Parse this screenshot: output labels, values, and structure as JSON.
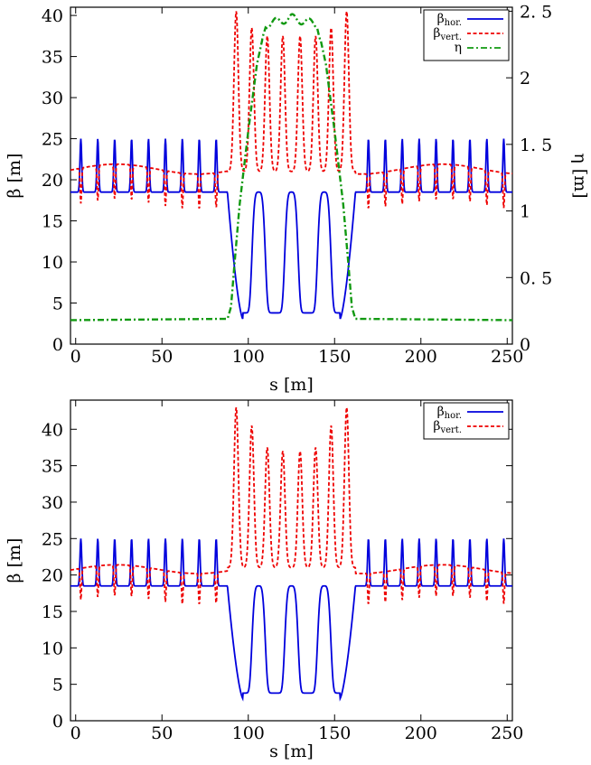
{
  "chart_data": [
    {
      "type": "line",
      "xlabel": "s [m]",
      "ylabel": "β [m]",
      "y2label": "η [m]",
      "xlim": [
        -3,
        253
      ],
      "ylim": [
        0,
        41
      ],
      "y2lim": [
        0,
        2.53
      ],
      "xticks": [
        "0",
        "50",
        "100",
        "150",
        "200",
        "250"
      ],
      "yticks": [
        "0",
        "5",
        "10",
        "15",
        "20",
        "25",
        "30",
        "35",
        "40"
      ],
      "y2ticks": [
        "0",
        "0. 5",
        "1",
        "1. 5",
        "2",
        "2. 5"
      ],
      "grid": false,
      "legend_position": "top-right",
      "series": [
        {
          "name": "β",
          "name_sub": "hor.",
          "color": "#0000dd",
          "dash": "solid",
          "axis": "left",
          "kind": "beta_h"
        },
        {
          "name": "β",
          "name_sub": "vert.",
          "color": "#ee0000",
          "dash": "dashed",
          "axis": "left",
          "kind": "beta_v"
        },
        {
          "name": "η",
          "name_sub": "",
          "color": "#119911",
          "dash": "dashdot",
          "axis": "right",
          "kind": "eta",
          "x": [
            -3,
            88,
            90,
            92,
            95,
            100,
            105,
            110,
            125,
            140,
            145,
            150,
            155,
            158,
            160,
            162,
            253
          ],
          "values": [
            0.18,
            0.19,
            0.28,
            0.6,
            1.05,
            1.6,
            2.1,
            2.4,
            2.45,
            2.4,
            2.1,
            1.6,
            1.05,
            0.6,
            0.28,
            0.19,
            0.18
          ]
        }
      ]
    },
    {
      "type": "line",
      "xlabel": "s [m]",
      "ylabel": "β [m]",
      "xlim": [
        -3,
        253
      ],
      "ylim": [
        0,
        44
      ],
      "xticks": [
        "0",
        "50",
        "100",
        "150",
        "200",
        "250"
      ],
      "yticks": [
        "0",
        "5",
        "10",
        "15",
        "20",
        "25",
        "30",
        "35",
        "40"
      ],
      "grid": false,
      "legend_position": "top-right",
      "series": [
        {
          "name": "β",
          "name_sub": "hor.",
          "color": "#0000dd",
          "dash": "solid",
          "axis": "left",
          "kind": "beta_h"
        },
        {
          "name": "β",
          "name_sub": "vert.",
          "color": "#ee0000",
          "dash": "dashed",
          "axis": "left",
          "kind": "beta_v"
        }
      ]
    }
  ],
  "arc_cell": {
    "period_m": 9.8,
    "top": {
      "beta_h_base": 18.5,
      "beta_h_peak": 25.0,
      "beta_v_base": 21.3,
      "beta_v_dip": 17.0
    },
    "bottom": {
      "beta_h_base": 18.5,
      "beta_h_peak": 25.0,
      "beta_v_base": 20.8,
      "beta_v_dip": 16.5
    }
  },
  "straight_section": {
    "start_m": 88,
    "end_m": 162,
    "beta_h_peaks": [
      {
        "s": 106,
        "beta": 18.5
      },
      {
        "s": 125,
        "beta": 18.5
      },
      {
        "s": 144,
        "beta": 18.5
      }
    ],
    "beta_h_minima": [
      {
        "s": 97,
        "beta": 2.9
      },
      {
        "s": 153,
        "beta": 2.9
      }
    ],
    "top_beta_v_peaks": [
      {
        "s": 93,
        "beta": 40.5
      },
      {
        "s": 102,
        "beta": 38.5
      },
      {
        "s": 111,
        "beta": 37.5
      },
      {
        "s": 120,
        "beta": 37.5
      },
      {
        "s": 130,
        "beta": 37.5
      },
      {
        "s": 139,
        "beta": 37.5
      },
      {
        "s": 148,
        "beta": 38.5
      },
      {
        "s": 157,
        "beta": 40.5
      }
    ],
    "bottom_beta_v_peaks": [
      {
        "s": 93,
        "beta": 43.0
      },
      {
        "s": 102,
        "beta": 40.5
      },
      {
        "s": 111,
        "beta": 37.5
      },
      {
        "s": 120,
        "beta": 37.0
      },
      {
        "s": 130,
        "beta": 37.0
      },
      {
        "s": 139,
        "beta": 37.5
      },
      {
        "s": 148,
        "beta": 40.5
      },
      {
        "s": 157,
        "beta": 43.0
      }
    ],
    "beta_v_valley": 21.0
  }
}
